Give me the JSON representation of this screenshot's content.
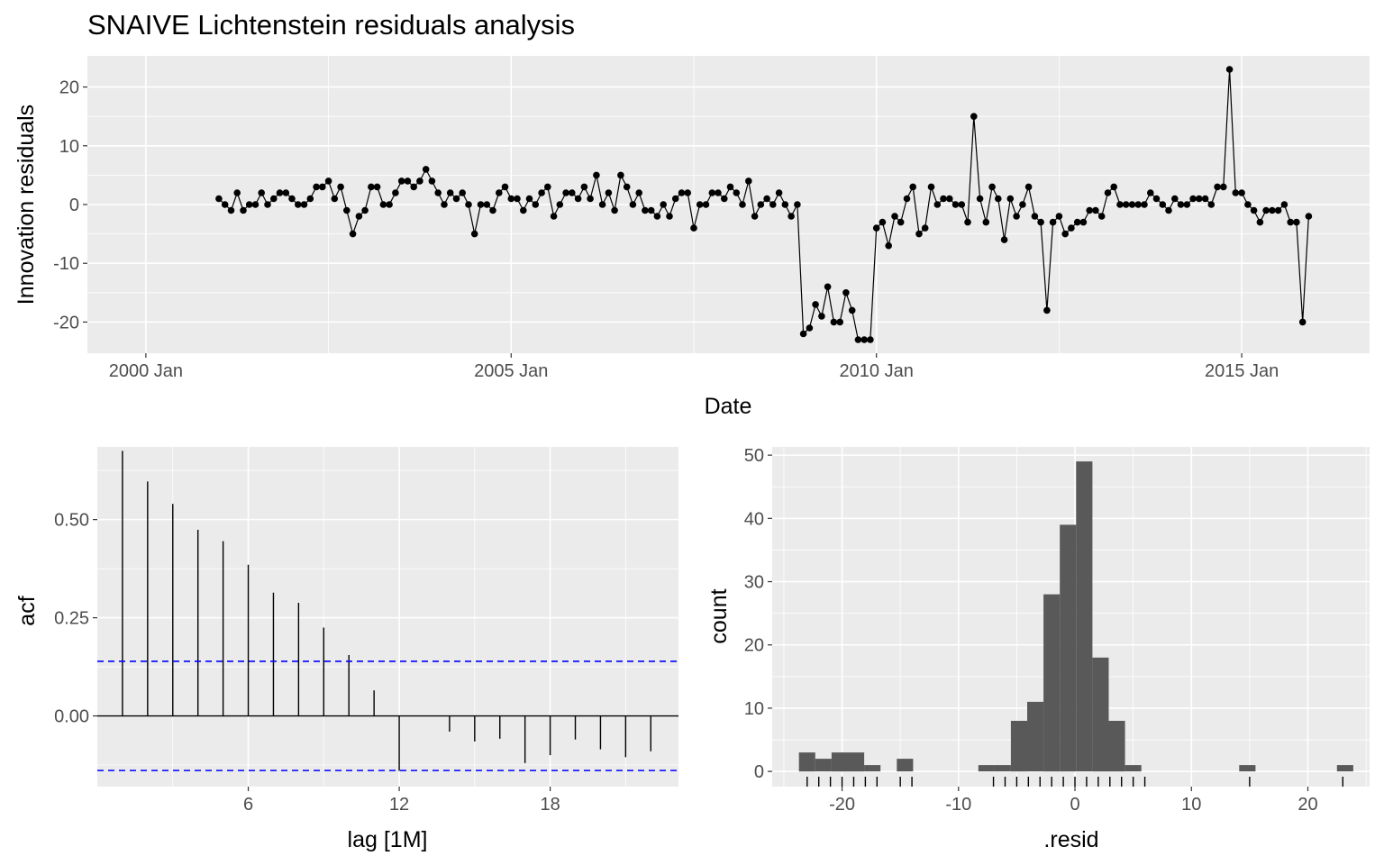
{
  "title": "SNAIVE Lichtenstein residuals analysis",
  "chart_data": [
    {
      "type": "line",
      "name": "innovation-residuals",
      "xlabel": "Date",
      "ylabel": "Innovation residuals",
      "x_ticks": [
        2000,
        2005,
        2010,
        2015
      ],
      "x_tick_labels": [
        "2000 Jan",
        "2005 Jan",
        "2010 Jan",
        "2015 Jan"
      ],
      "y_ticks": [
        -20,
        -10,
        0,
        10,
        20
      ],
      "y_tick_labels": [
        "-20",
        "-10",
        "0",
        "10",
        "20"
      ],
      "xlim": [
        1999.2,
        2016.75
      ],
      "ylim": [
        -25.3,
        25.3
      ],
      "start_year": 2001,
      "start_month": 1,
      "values": [
        1,
        0,
        -1,
        2,
        -1,
        0,
        0,
        2,
        0,
        1,
        2,
        2,
        1,
        0,
        0,
        1,
        3,
        3,
        4,
        1,
        3,
        -1,
        -5,
        -2,
        -1,
        3,
        3,
        0,
        0,
        2,
        4,
        4,
        3,
        4,
        6,
        4,
        2,
        0,
        2,
        1,
        2,
        0,
        -5,
        0,
        0,
        -1,
        2,
        3,
        1,
        1,
        -1,
        1,
        0,
        2,
        3,
        -2,
        0,
        2,
        2,
        1,
        3,
        1,
        5,
        0,
        2,
        -1,
        5,
        3,
        0,
        2,
        -1,
        -1,
        -2,
        0,
        -2,
        1,
        2,
        2,
        -4,
        0,
        0,
        2,
        2,
        1,
        3,
        2,
        0,
        4,
        -2,
        0,
        1,
        0,
        2,
        0,
        -2,
        0,
        -22,
        -21,
        -17,
        -19,
        -14,
        -20,
        -20,
        -15,
        -18,
        -23,
        -23,
        -23,
        -4,
        -3,
        -7,
        -2,
        -3,
        1,
        3,
        -5,
        -4,
        3,
        0,
        1,
        1,
        0,
        0,
        -3,
        15,
        1,
        -3,
        3,
        1,
        -6,
        1,
        -2,
        0,
        3,
        -2,
        -3,
        -18,
        -3,
        -2,
        -5,
        -4,
        -3,
        -3,
        -1,
        -1,
        -2,
        2,
        3,
        0,
        0,
        0,
        0,
        0,
        2,
        1,
        0,
        -1,
        1,
        0,
        0,
        1,
        1,
        1,
        0,
        3,
        3,
        23,
        2,
        2,
        0,
        -1,
        -3,
        -1,
        -1,
        -1,
        0,
        -3,
        -3,
        -20,
        -2
      ],
      "series_color": "#000000"
    },
    {
      "type": "bar",
      "name": "acf",
      "xlabel": "lag [1M]",
      "ylabel": "acf",
      "x_ticks": [
        6,
        12,
        18
      ],
      "x_tick_labels": [
        "6",
        "12",
        "18"
      ],
      "y_ticks": [
        0,
        0.25,
        0.5
      ],
      "y_tick_labels": [
        "0.00",
        "0.25",
        "0.50"
      ],
      "xlim": [
        0,
        23.1
      ],
      "ylim": [
        -0.18,
        0.685
      ],
      "lags": [
        1,
        2,
        3,
        4,
        5,
        6,
        7,
        8,
        9,
        10,
        11,
        12,
        13,
        14,
        15,
        16,
        17,
        18,
        19,
        20,
        21,
        22
      ],
      "values": [
        0.675,
        0.597,
        0.54,
        0.474,
        0.445,
        0.385,
        0.314,
        0.288,
        0.225,
        0.155,
        0.065,
        -0.14,
        0.0,
        -0.04,
        -0.065,
        -0.058,
        -0.12,
        -0.1,
        -0.06,
        -0.085,
        -0.105,
        -0.09
      ],
      "confidence_bound": 0.139,
      "bound_color": "#0000ff"
    },
    {
      "type": "bar",
      "name": "histogram",
      "xlabel": ".resid",
      "ylabel": "count",
      "x_ticks": [
        -20,
        -10,
        0,
        10,
        20
      ],
      "x_tick_labels": [
        "-20",
        "-10",
        "0",
        "10",
        "20"
      ],
      "y_ticks": [
        0,
        10,
        20,
        30,
        40,
        50
      ],
      "y_tick_labels": [
        "0",
        "10",
        "20",
        "30",
        "40",
        "50"
      ],
      "xlim": [
        -26.0,
        25.3
      ],
      "ylim": [
        -2.4,
        51.3
      ],
      "bin_starts": [
        -23.7,
        -22.3,
        -20.9,
        -19.5,
        -18.1,
        -16.7,
        -15.3,
        -13.9,
        -12.5,
        -11.1,
        -9.7,
        -8.3,
        -6.9,
        -5.5,
        -4.1,
        -2.7,
        -1.3,
        0.1,
        1.5,
        2.9,
        4.3,
        5.7,
        7.1,
        8.5,
        9.9,
        11.3,
        12.7,
        14.1,
        15.5,
        16.9,
        18.3,
        19.7,
        21.1,
        22.5
      ],
      "bin_width": 1.4,
      "counts": [
        3,
        2,
        3,
        3,
        1,
        0,
        2,
        0,
        0,
        0,
        0,
        1,
        1,
        8,
        11,
        28,
        39,
        49,
        18,
        8,
        1,
        0,
        0,
        0,
        0,
        0,
        0,
        1,
        0,
        0,
        0,
        0,
        0,
        1
      ],
      "rug": [
        -23,
        -22,
        -21,
        -20,
        -19,
        -18,
        -17,
        -15,
        -14,
        -7,
        -6,
        -5,
        -4,
        -3,
        -2,
        -1,
        0,
        1,
        2,
        3,
        4,
        5,
        6,
        15,
        23
      ],
      "bar_color": "#595959"
    }
  ]
}
